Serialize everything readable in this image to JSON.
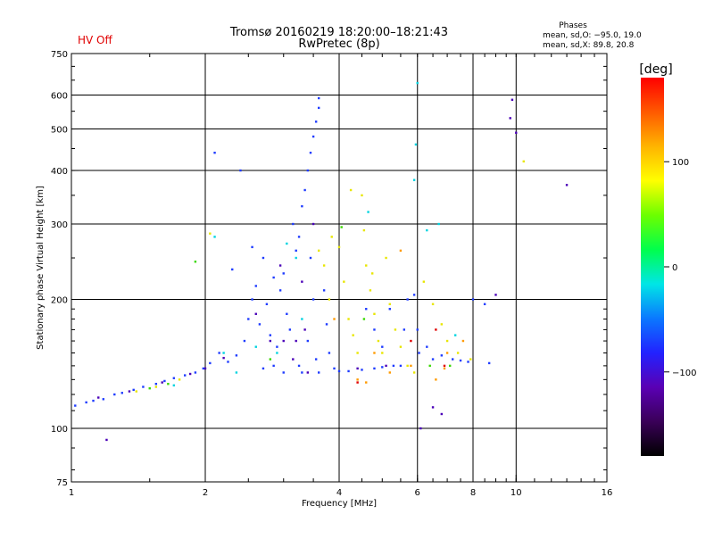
{
  "status_label": "HV Off",
  "title_line1": "Tromsø 20160219 18:20:00–18:21:43",
  "title_line2": "RwPretec (8p)",
  "phases": {
    "title": "Phases",
    "line_o": "mean, sd,O: −95.0, 19.0",
    "line_x": "mean, sd,X:  89.8, 20.8"
  },
  "colorbar": {
    "unit_label": "[deg]",
    "min": -180,
    "max": 180,
    "ticks": [
      {
        "value": 100,
        "label": "100"
      },
      {
        "value": 0,
        "label": "0"
      },
      {
        "value": -100,
        "label": "−100"
      }
    ],
    "colors": [
      "#000000",
      "#3a0058",
      "#5a00b4",
      "#2222ff",
      "#0a78ff",
      "#00e6e6",
      "#00ff4c",
      "#6cff00",
      "#ffff00",
      "#ffb400",
      "#ff5a00",
      "#ff0000"
    ]
  },
  "chart_data": {
    "type": "scatter",
    "title": "Tromsø 20160219 18:20:00–18:21:43",
    "subtitle": "RwPretec (8p)",
    "xlabel": "Frequency [MHz]",
    "ylabel": "Stationary phase Virtual Height [km]",
    "x_scale": "log",
    "y_scale": "log",
    "xlim": [
      1,
      16
    ],
    "ylim": [
      75,
      750
    ],
    "grid": true,
    "x_ticks": [
      {
        "value": 1,
        "label": "1"
      },
      {
        "value": 2,
        "label": "2"
      },
      {
        "value": 4,
        "label": "4"
      },
      {
        "value": 6,
        "label": "6"
      },
      {
        "value": 8,
        "label": "8"
      },
      {
        "value": 10,
        "label": "10"
      },
      {
        "value": 16,
        "label": "16"
      }
    ],
    "y_ticks": [
      {
        "value": 75,
        "label": "75"
      },
      {
        "value": 100,
        "label": "100"
      },
      {
        "value": 200,
        "label": "200"
      },
      {
        "value": 300,
        "label": "300"
      },
      {
        "value": 400,
        "label": "400"
      },
      {
        "value": 500,
        "label": "500"
      },
      {
        "value": 600,
        "label": "600"
      },
      {
        "value": 750,
        "label": "750"
      }
    ],
    "series": [
      {
        "color": "#1f3cff",
        "points": [
          [
            1.02,
            113
          ],
          [
            1.08,
            115
          ],
          [
            1.12,
            116
          ],
          [
            1.18,
            117
          ],
          [
            1.25,
            120
          ],
          [
            1.3,
            121
          ],
          [
            1.38,
            123
          ],
          [
            1.45,
            125
          ],
          [
            1.55,
            127
          ],
          [
            1.62,
            129
          ],
          [
            1.7,
            131
          ],
          [
            1.8,
            133
          ],
          [
            1.9,
            135
          ],
          [
            1.98,
            138
          ],
          [
            2.05,
            142
          ],
          [
            2.15,
            150
          ],
          [
            2.25,
            143
          ],
          [
            2.35,
            148
          ],
          [
            2.45,
            160
          ],
          [
            2.5,
            180
          ],
          [
            2.55,
            200
          ],
          [
            2.6,
            215
          ],
          [
            2.65,
            175
          ],
          [
            2.7,
            250
          ],
          [
            2.75,
            195
          ],
          [
            2.8,
            165
          ],
          [
            2.85,
            140
          ],
          [
            2.9,
            155
          ],
          [
            2.95,
            210
          ],
          [
            3.0,
            230
          ],
          [
            3.05,
            185
          ],
          [
            3.1,
            170
          ],
          [
            3.15,
            300
          ],
          [
            3.2,
            260
          ],
          [
            3.25,
            140
          ],
          [
            3.3,
            330
          ],
          [
            3.35,
            360
          ],
          [
            3.4,
            400
          ],
          [
            3.45,
            440
          ],
          [
            3.5,
            480
          ],
          [
            3.55,
            520
          ],
          [
            3.6,
            560
          ],
          [
            3.45,
            250
          ],
          [
            3.5,
            200
          ],
          [
            3.4,
            160
          ],
          [
            3.55,
            145
          ],
          [
            3.6,
            135
          ],
          [
            3.3,
            135
          ],
          [
            3.0,
            135
          ],
          [
            2.7,
            138
          ],
          [
            3.7,
            210
          ],
          [
            3.75,
            175
          ],
          [
            3.8,
            150
          ],
          [
            3.9,
            138
          ],
          [
            4.0,
            136
          ],
          [
            4.2,
            136
          ],
          [
            4.5,
            137
          ],
          [
            4.8,
            138
          ],
          [
            5.0,
            139
          ],
          [
            5.3,
            140
          ],
          [
            5.5,
            140
          ],
          [
            5.7,
            200
          ],
          [
            5.6,
            170
          ],
          [
            5.9,
            205
          ],
          [
            6.0,
            170
          ],
          [
            6.05,
            150
          ],
          [
            6.3,
            155
          ],
          [
            6.5,
            145
          ],
          [
            6.8,
            148
          ],
          [
            7.2,
            145
          ],
          [
            7.5,
            144
          ],
          [
            7.8,
            143
          ],
          [
            8.0,
            200
          ],
          [
            8.5,
            195
          ],
          [
            8.7,
            142
          ],
          [
            4.6,
            190
          ],
          [
            4.8,
            170
          ],
          [
            5.0,
            155
          ],
          [
            5.2,
            190
          ],
          [
            2.1,
            440
          ],
          [
            2.4,
            400
          ],
          [
            2.3,
            235
          ],
          [
            2.55,
            265
          ],
          [
            2.85,
            225
          ],
          [
            3.25,
            280
          ],
          [
            3.6,
            590
          ]
        ]
      },
      {
        "color": "#4a00b8",
        "points": [
          [
            1.15,
            118
          ],
          [
            1.35,
            122
          ],
          [
            1.6,
            128
          ],
          [
            1.85,
            134
          ],
          [
            2.0,
            138
          ],
          [
            2.2,
            146
          ],
          [
            2.6,
            185
          ],
          [
            2.8,
            160
          ],
          [
            3.0,
            160
          ],
          [
            3.2,
            160
          ],
          [
            3.4,
            135
          ],
          [
            3.5,
            300
          ],
          [
            3.35,
            170
          ],
          [
            2.95,
            240
          ],
          [
            3.3,
            220
          ],
          [
            3.15,
            145
          ],
          [
            4.4,
            138
          ],
          [
            5.1,
            140
          ],
          [
            6.5,
            112
          ],
          [
            6.8,
            108
          ],
          [
            9.0,
            205
          ],
          [
            9.8,
            585
          ],
          [
            9.7,
            530
          ],
          [
            10.0,
            490
          ],
          [
            13.0,
            370
          ],
          [
            6.1,
            100
          ],
          [
            1.2,
            94
          ]
        ]
      },
      {
        "color": "#e8e600",
        "points": [
          [
            1.4,
            122
          ],
          [
            1.55,
            125
          ],
          [
            1.75,
            130
          ],
          [
            3.6,
            260
          ],
          [
            3.7,
            240
          ],
          [
            3.8,
            200
          ],
          [
            3.85,
            280
          ],
          [
            4.0,
            265
          ],
          [
            4.1,
            220
          ],
          [
            4.2,
            180
          ],
          [
            4.3,
            165
          ],
          [
            4.4,
            150
          ],
          [
            4.5,
            350
          ],
          [
            4.55,
            290
          ],
          [
            4.6,
            240
          ],
          [
            4.7,
            210
          ],
          [
            4.8,
            185
          ],
          [
            4.9,
            160
          ],
          [
            5.0,
            150
          ],
          [
            5.1,
            250
          ],
          [
            5.2,
            195
          ],
          [
            5.35,
            170
          ],
          [
            5.5,
            155
          ],
          [
            5.7,
            140
          ],
          [
            5.9,
            135
          ],
          [
            6.2,
            220
          ],
          [
            6.5,
            195
          ],
          [
            6.8,
            175
          ],
          [
            7.0,
            160
          ],
          [
            7.4,
            150
          ],
          [
            7.9,
            145
          ],
          [
            10.4,
            420
          ],
          [
            2.05,
            285
          ],
          [
            4.25,
            360
          ],
          [
            4.75,
            230
          ]
        ]
      },
      {
        "color": "#ff9a00",
        "points": [
          [
            4.4,
            130
          ],
          [
            4.6,
            128
          ],
          [
            5.2,
            135
          ],
          [
            5.8,
            140
          ],
          [
            6.6,
            130
          ],
          [
            7.0,
            150
          ],
          [
            7.6,
            160
          ],
          [
            6.9,
            138
          ],
          [
            3.9,
            180
          ],
          [
            4.8,
            150
          ],
          [
            5.5,
            260
          ]
        ]
      },
      {
        "color": "#00d4e0",
        "points": [
          [
            1.7,
            126
          ],
          [
            2.1,
            280
          ],
          [
            2.2,
            150
          ],
          [
            2.35,
            135
          ],
          [
            2.6,
            155
          ],
          [
            2.9,
            150
          ],
          [
            3.05,
            270
          ],
          [
            3.2,
            250
          ],
          [
            3.3,
            180
          ],
          [
            5.95,
            460
          ],
          [
            6.0,
            640
          ],
          [
            6.3,
            290
          ],
          [
            6.7,
            300
          ],
          [
            7.3,
            165
          ],
          [
            5.9,
            380
          ],
          [
            4.65,
            320
          ]
        ]
      },
      {
        "color": "#39d800",
        "points": [
          [
            1.5,
            124
          ],
          [
            1.9,
            245
          ],
          [
            2.8,
            145
          ],
          [
            6.4,
            140
          ],
          [
            7.1,
            140
          ],
          [
            1.65,
            127
          ],
          [
            4.05,
            295
          ],
          [
            4.55,
            180
          ]
        ]
      },
      {
        "color": "#e00000",
        "points": [
          [
            5.8,
            160
          ],
          [
            6.6,
            170
          ],
          [
            6.9,
            140
          ],
          [
            4.4,
            128
          ]
        ]
      }
    ]
  }
}
